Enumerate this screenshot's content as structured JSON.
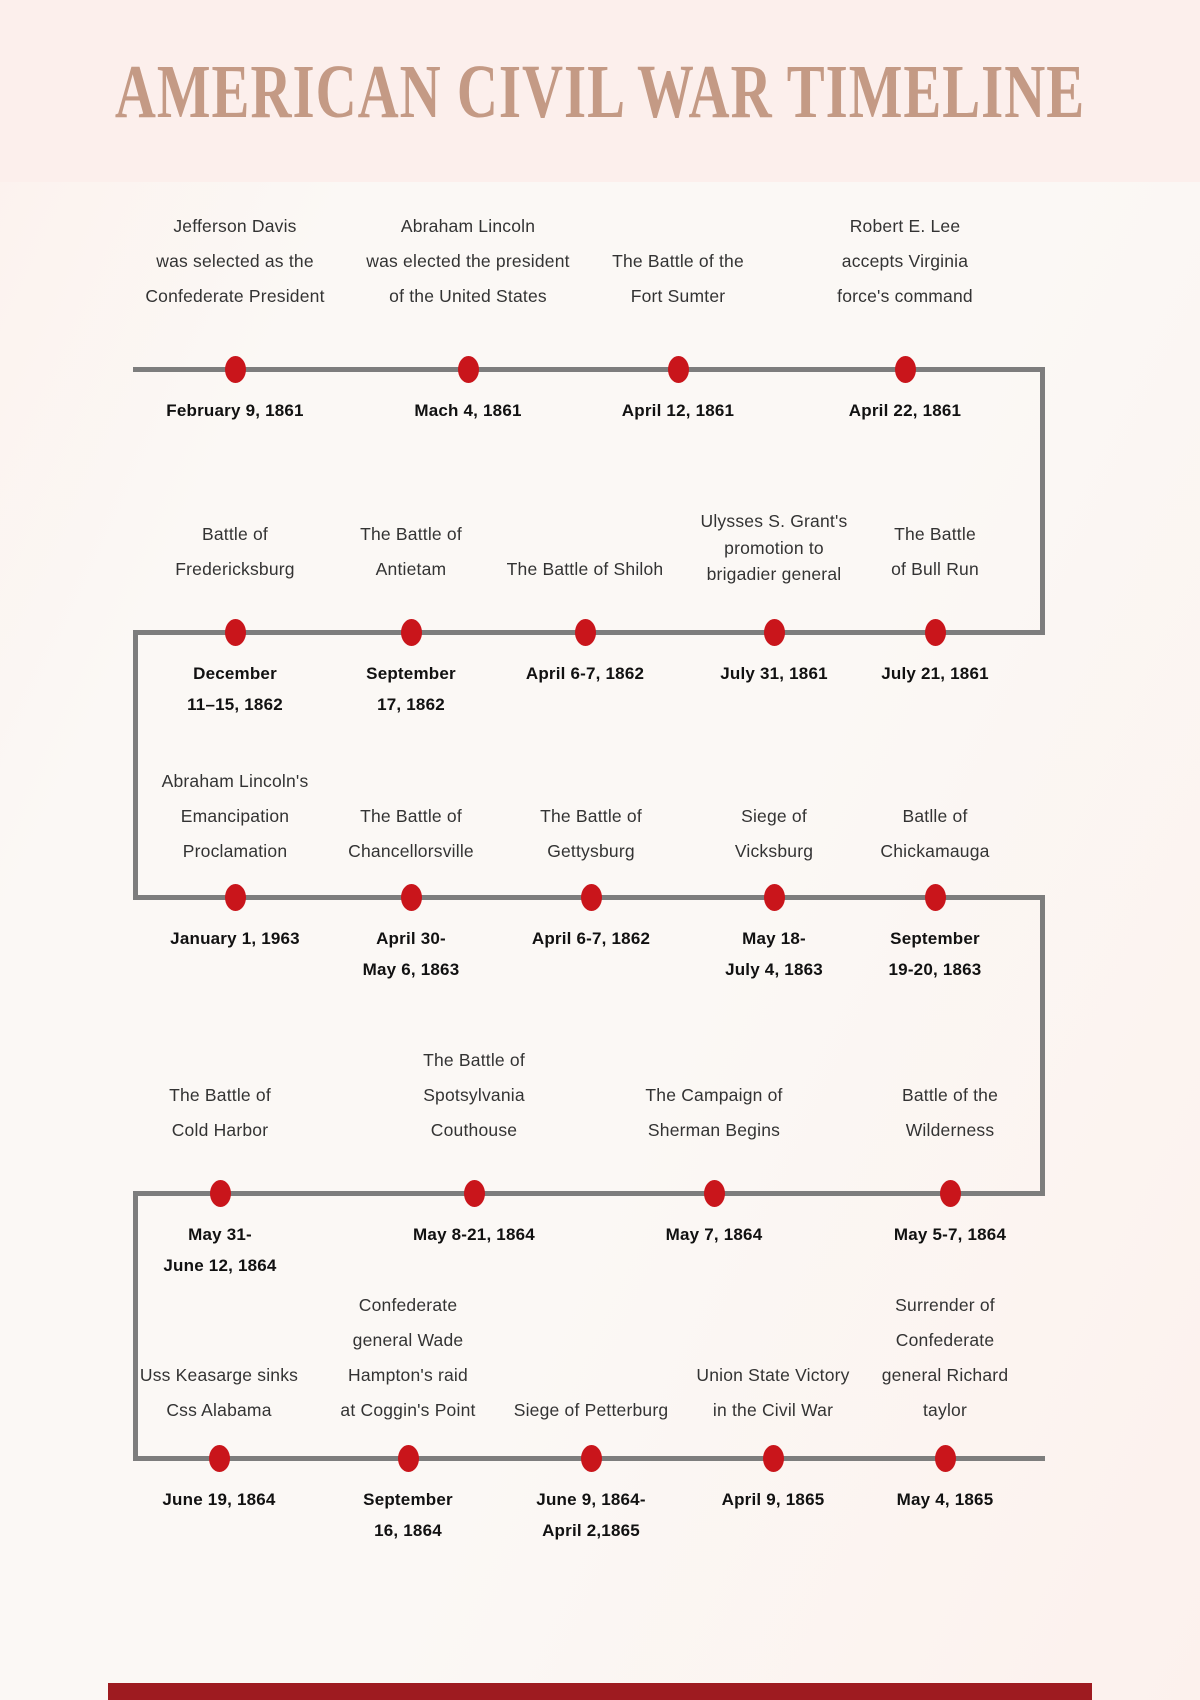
{
  "title": "AMERICAN CIVIL WAR TIMELINE",
  "theme": {
    "header_bg": "#fcefec",
    "page_bg": "#fbf8f5",
    "wash": "#fcf1ed",
    "title_color": "#c49a85",
    "line_color": "#7d7d7d",
    "dot_color": "#c9151b",
    "text_color": "#333333",
    "date_color": "#111111",
    "footer_bar_color": "#9e1b20"
  },
  "timeline": {
    "rows": [
      {
        "events": [
          {
            "description_lines": [
              "Jefferson Davis",
              "was selected as the",
              "Confederate President"
            ],
            "date_lines": [
              "February 9, 1861"
            ]
          },
          {
            "description_lines": [
              "Abraham Lincoln",
              "was elected the president",
              "of the United States"
            ],
            "date_lines": [
              "Mach 4, 1861"
            ]
          },
          {
            "description_lines": [
              "The Battle of the",
              "Fort Sumter"
            ],
            "date_lines": [
              "April 12, 1861"
            ]
          },
          {
            "description_lines": [
              "Robert E. Lee",
              "accepts Virginia",
              "force's command"
            ],
            "date_lines": [
              "April 22, 1861"
            ]
          }
        ]
      },
      {
        "events": [
          {
            "description_lines": [
              "Battle of",
              "Fredericksburg"
            ],
            "date_lines": [
              "December",
              "11–15, 1862"
            ]
          },
          {
            "description_lines": [
              "The Battle of",
              "Antietam"
            ],
            "date_lines": [
              "September",
              "17, 1862"
            ]
          },
          {
            "description_lines": [
              "The Battle of Shiloh"
            ],
            "date_lines": [
              "April 6-7, 1862"
            ]
          },
          {
            "description_lines": [
              "Ulysses S. Grant's",
              "promotion to",
              "brigadier general"
            ],
            "date_lines": [
              "July 31, 1861"
            ]
          },
          {
            "description_lines": [
              "The Battle",
              "of Bull Run"
            ],
            "date_lines": [
              "July 21, 1861"
            ]
          }
        ]
      },
      {
        "events": [
          {
            "description_lines": [
              "Abraham Lincoln's",
              "Emancipation",
              "Proclamation"
            ],
            "date_lines": [
              "January 1, 1963"
            ]
          },
          {
            "description_lines": [
              "The Battle of",
              "Chancellorsville"
            ],
            "date_lines": [
              "April 30-",
              "May 6, 1863"
            ]
          },
          {
            "description_lines": [
              "The Battle of",
              "Gettysburg"
            ],
            "date_lines": [
              "April 6-7, 1862"
            ]
          },
          {
            "description_lines": [
              "Siege of",
              "Vicksburg"
            ],
            "date_lines": [
              "May 18-",
              "July 4, 1863"
            ]
          },
          {
            "description_lines": [
              "Batlle of",
              "Chickamauga"
            ],
            "date_lines": [
              "September",
              "19-20, 1863"
            ]
          }
        ]
      },
      {
        "events": [
          {
            "description_lines": [
              "The Battle of",
              "Cold Harbor"
            ],
            "date_lines": [
              "May 31-",
              "June 12, 1864"
            ]
          },
          {
            "description_lines": [
              "The Battle of",
              "Spotsylvania",
              "Couthouse"
            ],
            "date_lines": [
              "May 8-21, 1864"
            ]
          },
          {
            "description_lines": [
              "The Campaign of",
              "Sherman Begins"
            ],
            "date_lines": [
              "May 7, 1864"
            ]
          },
          {
            "description_lines": [
              "Battle of the",
              "Wilderness"
            ],
            "date_lines": [
              "May 5-7, 1864"
            ]
          }
        ]
      },
      {
        "events": [
          {
            "description_lines": [
              "Uss Keasarge sinks",
              "Css Alabama"
            ],
            "date_lines": [
              "June 19, 1864"
            ]
          },
          {
            "description_lines": [
              "Confederate",
              "general Wade",
              "Hampton's raid",
              "at Coggin's Point"
            ],
            "date_lines": [
              "September",
              "16, 1864"
            ]
          },
          {
            "description_lines": [
              "Siege of Petterburg"
            ],
            "date_lines": [
              "June 9, 1864-",
              "April 2,1865"
            ]
          },
          {
            "description_lines": [
              "Union State Victory",
              "in the Civil War"
            ],
            "date_lines": [
              "April 9, 1865"
            ]
          },
          {
            "description_lines": [
              "Surrender of",
              "Confederate",
              "general Richard",
              "taylor"
            ],
            "date_lines": [
              "May 4, 1865"
            ]
          }
        ]
      }
    ]
  }
}
